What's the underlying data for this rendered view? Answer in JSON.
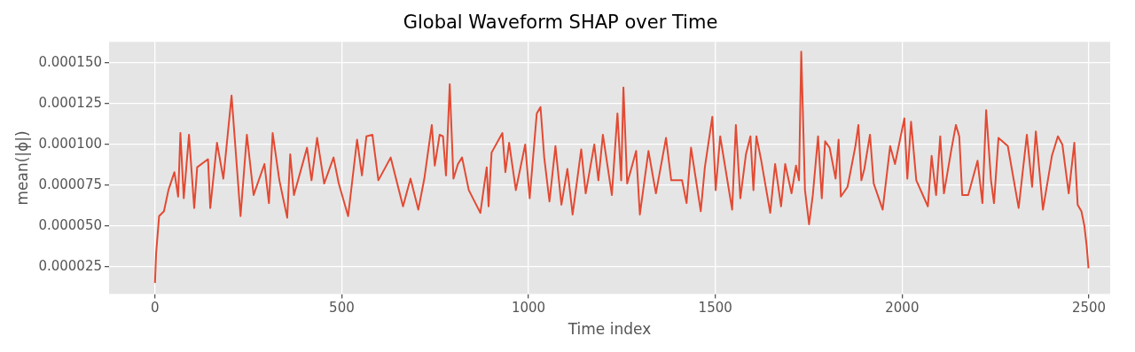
{
  "chart_data": {
    "type": "line",
    "title": "Global Waveform SHAP over Time",
    "xlabel": "Time index",
    "ylabel": "mean(|ϕ|)",
    "x": [
      0,
      3,
      11,
      24,
      36,
      52,
      62,
      68,
      77,
      91,
      105,
      113,
      142,
      148,
      166,
      183,
      205,
      229,
      246,
      264,
      293,
      305,
      315,
      333,
      354,
      362,
      372,
      407,
      419,
      434,
      453,
      478,
      492,
      517,
      541,
      554,
      566,
      582,
      598,
      631,
      664,
      684,
      705,
      721,
      741,
      749,
      762,
      771,
      779,
      789,
      799,
      811,
      822,
      840,
      871,
      888,
      893,
      901,
      930,
      938,
      948,
      966,
      991,
      1003,
      1022,
      1032,
      1042,
      1056,
      1072,
      1088,
      1104,
      1118,
      1141,
      1153,
      1176,
      1187,
      1199,
      1223,
      1238,
      1248,
      1254,
      1264,
      1288,
      1298,
      1321,
      1341,
      1368,
      1382,
      1411,
      1423,
      1435,
      1461,
      1472,
      1492,
      1501,
      1513,
      1545,
      1555,
      1567,
      1582,
      1594,
      1602,
      1610,
      1623,
      1647,
      1660,
      1676,
      1687,
      1704,
      1716,
      1724,
      1730,
      1740,
      1751,
      1761,
      1775,
      1785,
      1794,
      1806,
      1822,
      1830,
      1836,
      1854,
      1875,
      1883,
      1891,
      1899,
      1914,
      1924,
      1948,
      1968,
      1981,
      2006,
      2014,
      2024,
      2038,
      2069,
      2079,
      2091,
      2102,
      2112,
      2132,
      2144,
      2153,
      2161,
      2177,
      2202,
      2215,
      2225,
      2238,
      2246,
      2258,
      2283,
      2312,
      2334,
      2348,
      2358,
      2377,
      2401,
      2417,
      2429,
      2446,
      2461,
      2470,
      2480,
      2488,
      2494,
      2499
    ],
    "series": [
      {
        "color": "#e24a33",
        "values": [
          1.5e-05,
          3.3e-05,
          5.6e-05,
          5.9e-05,
          7.2e-05,
          8.3e-05,
          6.8e-05,
          0.000107,
          6.7e-05,
          0.000106,
          6.1e-05,
          8.6e-05,
          9.1e-05,
          6.1e-05,
          0.000101,
          7.9e-05,
          0.00013,
          5.6e-05,
          0.000106,
          6.9e-05,
          8.8e-05,
          6.4e-05,
          0.000107,
          7.8e-05,
          5.5e-05,
          9.4e-05,
          6.9e-05,
          9.8e-05,
          7.8e-05,
          0.000104,
          7.6e-05,
          9.2e-05,
          7.6e-05,
          5.6e-05,
          0.000103,
          8.1e-05,
          0.000105,
          0.000106,
          7.8e-05,
          9.2e-05,
          6.2e-05,
          7.9e-05,
          6e-05,
          7.9e-05,
          0.000112,
          8.7e-05,
          0.000106,
          0.000105,
          8.1e-05,
          0.000137,
          7.9e-05,
          8.8e-05,
          9.2e-05,
          7.2e-05,
          5.8e-05,
          8.6e-05,
          6.2e-05,
          9.5e-05,
          0.000107,
          8.3e-05,
          0.000101,
          7.2e-05,
          0.0001,
          6.7e-05,
          0.000119,
          0.000123,
          9.2e-05,
          6.5e-05,
          9.9e-05,
          6.3e-05,
          8.5e-05,
          5.7e-05,
          9.7e-05,
          7e-05,
          0.0001,
          7.8e-05,
          0.000106,
          6.9e-05,
          0.000119,
          7.8e-05,
          0.000135,
          7.6e-05,
          9.6e-05,
          5.7e-05,
          9.6e-05,
          7e-05,
          0.000104,
          7.8e-05,
          7.8e-05,
          6.4e-05,
          9.8e-05,
          5.9e-05,
          8.6e-05,
          0.000117,
          7.2e-05,
          0.000105,
          6e-05,
          0.000112,
          6.7e-05,
          9.4e-05,
          0.000105,
          7.2e-05,
          0.000105,
          9e-05,
          5.8e-05,
          8.8e-05,
          6.2e-05,
          8.8e-05,
          7e-05,
          8.7e-05,
          7.8e-05,
          0.000157,
          7.2e-05,
          5.1e-05,
          6.9e-05,
          0.000105,
          6.7e-05,
          0.000102,
          9.8e-05,
          7.9e-05,
          0.000103,
          6.8e-05,
          7.4e-05,
          9.9e-05,
          0.000112,
          7.8e-05,
          8.5e-05,
          0.000106,
          7.6e-05,
          6e-05,
          9.9e-05,
          8.8e-05,
          0.000116,
          7.9e-05,
          0.000114,
          7.8e-05,
          6.2e-05,
          9.3e-05,
          6.9e-05,
          0.000105,
          7e-05,
          9.7e-05,
          0.000112,
          0.000105,
          6.9e-05,
          6.9e-05,
          9e-05,
          6.4e-05,
          0.000121,
          7.8e-05,
          6.4e-05,
          0.000104,
          9.9e-05,
          6.1e-05,
          0.000106,
          7.4e-05,
          0.000108,
          6e-05,
          9.3e-05,
          0.000105,
          0.0001,
          7e-05,
          0.000101,
          6.3e-05,
          5.9e-05,
          5e-05,
          3.8e-05,
          2.4e-05
        ]
      }
    ],
    "xlim": [
      -123,
      2557
    ],
    "xticks": [
      0,
      500,
      1000,
      1500,
      2000,
      2500
    ],
    "ylim": [
      8.2e-06,
      0.000163
    ],
    "yticks": [
      {
        "value": 2.5e-05,
        "label": "0.000025"
      },
      {
        "value": 5e-05,
        "label": "0.000050"
      },
      {
        "value": 7.5e-05,
        "label": "0.000075"
      },
      {
        "value": 0.0001,
        "label": "0.000100"
      },
      0.000125,
      {
        "value": 0.00015,
        "label": "0.000150"
      }
    ],
    "grid": true,
    "legend": false,
    "marker": "none",
    "line_style": "solid"
  }
}
